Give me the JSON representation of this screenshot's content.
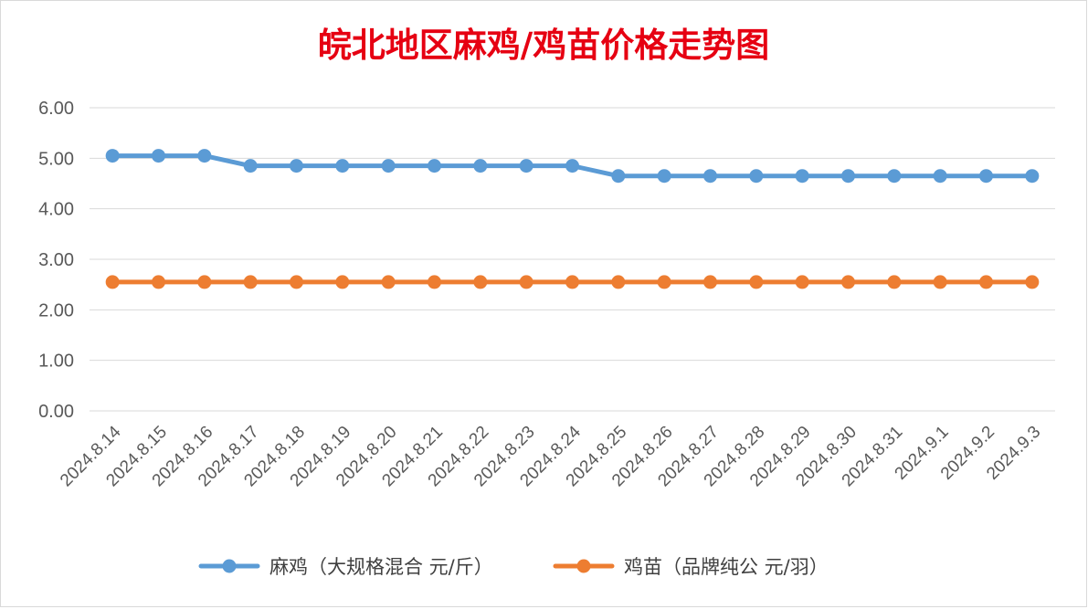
{
  "colors": {
    "title": "#e60012",
    "series_1": "#5b9bd5",
    "series_2": "#ed7d31",
    "grid": "#d9d9d9",
    "frame": "#d9d9d9",
    "tick_text": "#595959",
    "legend_text": "#404040"
  },
  "chart_data": {
    "type": "line",
    "title": "皖北地区麻鸡/鸡苗价格走势图",
    "xlabel": "",
    "ylabel": "",
    "ylim": [
      0,
      6
    ],
    "yticks": [
      "0.00",
      "1.00",
      "2.00",
      "3.00",
      "4.00",
      "5.00",
      "6.00"
    ],
    "grid": true,
    "legend_position": "bottom",
    "categories": [
      "2024.8.14",
      "2024.8.15",
      "2024.8.16",
      "2024.8.17",
      "2024.8.18",
      "2024.8.19",
      "2024.8.20",
      "2024.8.21",
      "2024.8.22",
      "2024.8.23",
      "2024.8.24",
      "2024.8.25",
      "2024.8.26",
      "2024.8.27",
      "2024.8.28",
      "2024.8.29",
      "2024.8.30",
      "2024.8.31",
      "2024.9.1",
      "2024.9.2",
      "2024.9.3"
    ],
    "series": [
      {
        "name": "麻鸡（大规格混合 元/斤）",
        "values": [
          5.05,
          5.05,
          5.05,
          4.85,
          4.85,
          4.85,
          4.85,
          4.85,
          4.85,
          4.85,
          4.85,
          4.65,
          4.65,
          4.65,
          4.65,
          4.65,
          4.65,
          4.65,
          4.65,
          4.65,
          4.65
        ]
      },
      {
        "name": "鸡苗（品牌纯公 元/羽）",
        "values": [
          2.55,
          2.55,
          2.55,
          2.55,
          2.55,
          2.55,
          2.55,
          2.55,
          2.55,
          2.55,
          2.55,
          2.55,
          2.55,
          2.55,
          2.55,
          2.55,
          2.55,
          2.55,
          2.55,
          2.55,
          2.55
        ]
      }
    ]
  }
}
